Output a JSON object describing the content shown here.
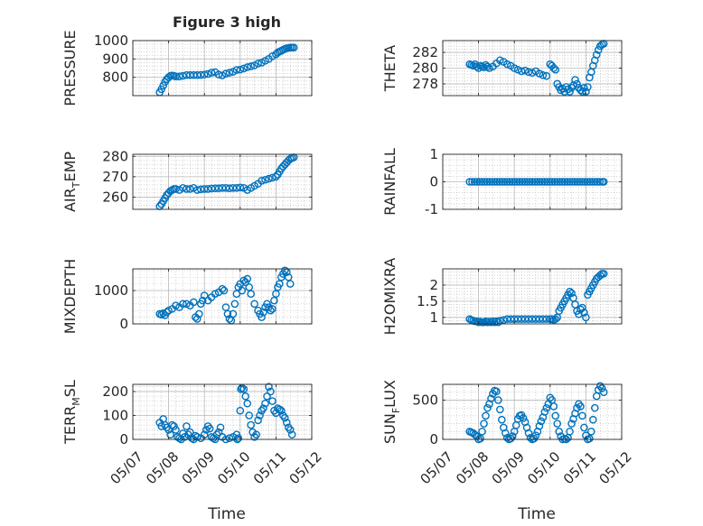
{
  "figure": {
    "title": "Figure 3 high",
    "xlabel": "Time"
  },
  "colors": {
    "marker": "#0072BD",
    "axis": "#262626",
    "grid": "#b8b8b8",
    "background": "#ffffff"
  },
  "chart_data": [
    {
      "type": "scatter",
      "title": "Figure 3 high",
      "ylabel": "PRESSURE",
      "ylabel_sub": "",
      "ylabel_tail": "",
      "xlim": [
        "05/07",
        "05/12"
      ],
      "ylim": [
        700,
        1000
      ],
      "yticks": [
        800,
        900,
        1000
      ],
      "xticklabels": [],
      "grid": true,
      "x_days": [
        0.75,
        0.8,
        0.85,
        0.9,
        0.95,
        1.0,
        1.05,
        1.1,
        1.15,
        1.2,
        1.3,
        1.4,
        1.5,
        1.6,
        1.7,
        1.8,
        1.9,
        2.0,
        2.1,
        2.2,
        2.3,
        2.4,
        2.5,
        2.6,
        2.7,
        2.8,
        2.9,
        3.0,
        3.1,
        3.2,
        3.3,
        3.4,
        3.5,
        3.6,
        3.7,
        3.8,
        3.9,
        4.0,
        4.05,
        4.1,
        4.15,
        4.2,
        4.25,
        4.3,
        4.35,
        4.4,
        4.45,
        4.5
      ],
      "y": [
        718,
        735,
        755,
        775,
        790,
        800,
        808,
        810,
        808,
        805,
        805,
        808,
        812,
        812,
        812,
        812,
        813,
        815,
        818,
        825,
        828,
        815,
        810,
        820,
        825,
        830,
        840,
        842,
        848,
        855,
        860,
        865,
        875,
        880,
        890,
        900,
        915,
        925,
        935,
        940,
        945,
        950,
        955,
        958,
        960,
        962,
        962,
        962
      ]
    },
    {
      "type": "scatter",
      "title": "",
      "ylabel": "THETA",
      "ylabel_sub": "",
      "ylabel_tail": "",
      "xlim": [
        "05/07",
        "05/12"
      ],
      "ylim": [
        276.5,
        283.5
      ],
      "yticks": [
        278,
        280,
        282
      ],
      "xticklabels": [],
      "grid": true,
      "x_days": [
        0.75,
        0.8,
        0.85,
        0.9,
        0.95,
        1.0,
        1.05,
        1.1,
        1.15,
        1.2,
        1.25,
        1.3,
        1.4,
        1.5,
        1.6,
        1.7,
        1.8,
        1.9,
        2.0,
        2.1,
        2.2,
        2.3,
        2.4,
        2.5,
        2.6,
        2.7,
        2.8,
        2.9,
        3.0,
        3.05,
        3.1,
        3.15,
        3.2,
        3.25,
        3.3,
        3.35,
        3.4,
        3.45,
        3.5,
        3.55,
        3.6,
        3.65,
        3.7,
        3.75,
        3.8,
        3.85,
        3.9,
        3.95,
        4.0,
        4.05,
        4.1,
        4.15,
        4.2,
        4.25,
        4.3,
        4.35,
        4.4,
        4.45,
        4.5
      ],
      "y": [
        280.5,
        280.4,
        280.3,
        280.5,
        280.2,
        280.0,
        280.3,
        280.2,
        280.1,
        280.4,
        280.2,
        280.0,
        280.2,
        280.6,
        281.0,
        280.8,
        280.5,
        280.3,
        280.0,
        279.8,
        279.6,
        279.7,
        279.5,
        279.4,
        279.6,
        279.3,
        279.1,
        279.0,
        280.5,
        280.3,
        280.0,
        279.8,
        278.0,
        277.6,
        277.2,
        277.4,
        277.0,
        277.6,
        277.3,
        277.0,
        277.5,
        277.8,
        278.5,
        278.0,
        277.5,
        277.2,
        277.0,
        277.5,
        277.0,
        277.6,
        278.8,
        279.5,
        280.3,
        281.0,
        281.7,
        282.3,
        282.8,
        283.0,
        283.1
      ]
    },
    {
      "type": "scatter",
      "title": "",
      "ylabel": "AIR",
      "ylabel_sub": "T",
      "ylabel_tail": "EMP",
      "xlim": [
        "05/07",
        "05/12"
      ],
      "ylim": [
        254,
        281
      ],
      "yticks": [
        260,
        270,
        280
      ],
      "xticklabels": [],
      "grid": true,
      "x_days": [
        0.75,
        0.8,
        0.85,
        0.9,
        0.95,
        1.0,
        1.05,
        1.1,
        1.15,
        1.2,
        1.3,
        1.4,
        1.5,
        1.6,
        1.7,
        1.8,
        1.9,
        2.0,
        2.1,
        2.2,
        2.3,
        2.4,
        2.5,
        2.6,
        2.7,
        2.8,
        2.9,
        3.0,
        3.1,
        3.2,
        3.3,
        3.4,
        3.5,
        3.6,
        3.7,
        3.8,
        3.9,
        4.0,
        4.05,
        4.1,
        4.15,
        4.2,
        4.25,
        4.3,
        4.35,
        4.4,
        4.45,
        4.5
      ],
      "y": [
        255.5,
        256.5,
        258,
        259.5,
        261,
        262,
        263,
        263.5,
        264,
        264,
        263.5,
        264.5,
        264,
        264,
        264.5,
        263.5,
        263.8,
        264,
        264,
        264.2,
        264.3,
        264.3,
        264.5,
        264.5,
        264.3,
        264.5,
        264.5,
        264.7,
        264.5,
        263.5,
        264.5,
        265.5,
        266.5,
        268.0,
        268.5,
        269,
        269.5,
        270,
        271,
        272.5,
        274,
        275,
        276,
        277,
        278,
        278.8,
        279.2,
        279.5
      ]
    },
    {
      "type": "scatter",
      "title": "",
      "ylabel": "RAINFALL",
      "ylabel_sub": "",
      "ylabel_tail": "",
      "xlim": [
        "05/07",
        "05/12"
      ],
      "ylim": [
        -1,
        1
      ],
      "yticks": [
        -1,
        0,
        1
      ],
      "xticklabels": [],
      "grid": true,
      "x_days": [
        0.75,
        0.82,
        0.89,
        0.96,
        1.03,
        1.1,
        1.17,
        1.24,
        1.31,
        1.38,
        1.45,
        1.52,
        1.59,
        1.66,
        1.73,
        1.8,
        1.87,
        1.94,
        2.01,
        2.08,
        2.15,
        2.22,
        2.29,
        2.36,
        2.43,
        2.5,
        2.57,
        2.64,
        2.71,
        2.78,
        2.85,
        2.92,
        2.99,
        3.06,
        3.13,
        3.2,
        3.27,
        3.34,
        3.41,
        3.48,
        3.55,
        3.62,
        3.69,
        3.76,
        3.83,
        3.9,
        3.97,
        4.04,
        4.11,
        4.18,
        4.25,
        4.32,
        4.39,
        4.46,
        4.5
      ],
      "y": [
        0,
        0,
        0,
        0,
        0,
        0,
        0,
        0,
        0,
        0,
        0,
        0,
        0,
        0,
        0,
        0,
        0,
        0,
        0,
        0,
        0,
        0,
        0,
        0,
        0,
        0,
        0,
        0,
        0,
        0,
        0,
        0,
        0,
        0,
        0,
        0,
        0,
        0,
        0,
        0,
        0,
        0,
        0,
        0,
        0,
        0,
        0,
        0,
        0,
        0,
        0,
        0,
        0,
        0,
        0
      ]
    },
    {
      "type": "scatter",
      "title": "",
      "ylabel": "MIXDEPTH",
      "ylabel_sub": "",
      "ylabel_tail": "",
      "xlim": [
        "05/07",
        "05/12"
      ],
      "ylim": [
        0,
        1650
      ],
      "yticks": [
        0,
        1000
      ],
      "xticklabels": [],
      "grid": true,
      "x_days": [
        0.75,
        0.8,
        0.85,
        0.9,
        0.95,
        1.0,
        1.1,
        1.2,
        1.3,
        1.4,
        1.5,
        1.6,
        1.7,
        1.75,
        1.8,
        1.85,
        1.9,
        1.95,
        2.0,
        2.1,
        2.2,
        2.3,
        2.4,
        2.5,
        2.55,
        2.6,
        2.65,
        2.7,
        2.75,
        2.8,
        2.85,
        2.9,
        2.95,
        3.0,
        3.05,
        3.1,
        3.15,
        3.2,
        3.25,
        3.3,
        3.4,
        3.5,
        3.55,
        3.6,
        3.65,
        3.7,
        3.75,
        3.8,
        3.85,
        3.9,
        3.95,
        4.0,
        4.05,
        4.1,
        4.15,
        4.2,
        4.25,
        4.3,
        4.35,
        4.4
      ],
      "y": [
        300,
        280,
        320,
        260,
        350,
        400,
        450,
        550,
        500,
        600,
        600,
        550,
        650,
        200,
        150,
        300,
        600,
        700,
        850,
        700,
        800,
        900,
        950,
        1050,
        1000,
        500,
        300,
        150,
        100,
        300,
        600,
        900,
        1100,
        1200,
        1000,
        1300,
        1250,
        1350,
        1100,
        900,
        600,
        400,
        300,
        200,
        350,
        500,
        600,
        500,
        400,
        450,
        700,
        900,
        1100,
        1200,
        1400,
        1500,
        1600,
        1550,
        1400,
        1200
      ]
    },
    {
      "type": "scatter",
      "title": "",
      "ylabel": "H2OMIXRA",
      "ylabel_sub": "",
      "ylabel_tail": "",
      "xlim": [
        "05/07",
        "05/12"
      ],
      "ylim": [
        0.8,
        2.5
      ],
      "yticks": [
        1,
        1.5,
        2
      ],
      "xticklabels": [],
      "grid": true,
      "x_days": [
        0.75,
        0.8,
        0.85,
        0.9,
        0.95,
        1.0,
        1.05,
        1.1,
        1.15,
        1.2,
        1.25,
        1.3,
        1.35,
        1.4,
        1.45,
        1.5,
        1.55,
        1.6,
        1.7,
        1.8,
        1.9,
        2.0,
        2.1,
        2.2,
        2.3,
        2.4,
        2.5,
        2.6,
        2.7,
        2.8,
        2.9,
        3.0,
        3.05,
        3.1,
        3.15,
        3.2,
        3.25,
        3.3,
        3.35,
        3.4,
        3.45,
        3.5,
        3.55,
        3.6,
        3.65,
        3.7,
        3.75,
        3.8,
        3.85,
        3.9,
        3.95,
        4.0,
        4.05,
        4.1,
        4.15,
        4.2,
        4.25,
        4.3,
        4.35,
        4.4,
        4.45,
        4.5
      ],
      "y": [
        0.95,
        0.92,
        0.9,
        0.88,
        0.88,
        0.85,
        0.87,
        0.85,
        0.85,
        0.88,
        0.85,
        0.87,
        0.85,
        0.88,
        0.85,
        0.88,
        0.85,
        0.9,
        0.92,
        0.95,
        0.95,
        0.95,
        0.95,
        0.95,
        0.95,
        0.95,
        0.95,
        0.95,
        0.95,
        0.95,
        0.95,
        0.95,
        0.95,
        0.92,
        0.95,
        1.0,
        1.2,
        1.3,
        1.4,
        1.5,
        1.6,
        1.7,
        1.8,
        1.75,
        1.6,
        1.4,
        1.2,
        1.1,
        1.25,
        1.3,
        1.15,
        1.0,
        1.7,
        1.8,
        1.9,
        2.0,
        2.1,
        2.2,
        2.25,
        2.3,
        2.35,
        2.35
      ]
    },
    {
      "type": "scatter",
      "title": "",
      "ylabel": "TERR",
      "ylabel_sub": "M",
      "ylabel_tail": "SL",
      "xlim": [
        "05/07",
        "05/12"
      ],
      "ylim": [
        0,
        230
      ],
      "yticks": [
        0,
        100,
        200
      ],
      "xticklabels": [
        "05/07",
        "05/08",
        "05/09",
        "05/10",
        "05/11",
        "05/12"
      ],
      "grid": true,
      "x_days": [
        0.75,
        0.8,
        0.85,
        0.9,
        0.95,
        1.0,
        1.05,
        1.1,
        1.15,
        1.2,
        1.25,
        1.3,
        1.35,
        1.4,
        1.45,
        1.5,
        1.55,
        1.6,
        1.65,
        1.7,
        1.75,
        1.8,
        1.9,
        2.0,
        2.05,
        2.1,
        2.15,
        2.2,
        2.25,
        2.3,
        2.35,
        2.4,
        2.45,
        2.5,
        2.6,
        2.7,
        2.8,
        2.9,
        2.92,
        2.95,
        3.0,
        3.02,
        3.05,
        3.1,
        3.15,
        3.2,
        3.25,
        3.3,
        3.35,
        3.4,
        3.45,
        3.5,
        3.55,
        3.6,
        3.65,
        3.7,
        3.75,
        3.8,
        3.85,
        3.9,
        3.95,
        4.0,
        4.05,
        4.1,
        4.15,
        4.2,
        4.25,
        4.3,
        4.35,
        4.4,
        4.45
      ],
      "y": [
        70,
        55,
        85,
        60,
        50,
        40,
        20,
        60,
        55,
        40,
        10,
        5,
        0,
        25,
        10,
        55,
        20,
        30,
        5,
        0,
        15,
        10,
        5,
        20,
        40,
        55,
        45,
        10,
        5,
        0,
        20,
        30,
        50,
        10,
        0,
        5,
        10,
        20,
        0,
        5,
        120,
        210,
        215,
        210,
        180,
        150,
        100,
        60,
        30,
        10,
        20,
        80,
        100,
        120,
        130,
        150,
        180,
        220,
        200,
        160,
        120,
        110,
        130,
        125,
        120,
        100,
        90,
        70,
        50,
        40,
        20
      ]
    },
    {
      "type": "scatter",
      "title": "",
      "ylabel": "SUN",
      "ylabel_sub": "F",
      "ylabel_tail": "LUX",
      "xlim": [
        "05/07",
        "05/12"
      ],
      "ylim": [
        0,
        700
      ],
      "yticks": [
        0,
        500
      ],
      "xticklabels": [
        "05/07",
        "05/08",
        "05/09",
        "05/10",
        "05/11",
        "05/12"
      ],
      "grid": true,
      "x_days": [
        0.75,
        0.8,
        0.85,
        0.9,
        0.95,
        1.0,
        1.05,
        1.1,
        1.15,
        1.2,
        1.25,
        1.3,
        1.35,
        1.4,
        1.45,
        1.5,
        1.55,
        1.6,
        1.65,
        1.7,
        1.75,
        1.8,
        1.85,
        1.9,
        1.95,
        2.0,
        2.05,
        2.1,
        2.15,
        2.2,
        2.25,
        2.3,
        2.35,
        2.4,
        2.45,
        2.5,
        2.55,
        2.6,
        2.65,
        2.7,
        2.75,
        2.8,
        2.85,
        2.9,
        2.95,
        3.0,
        3.05,
        3.1,
        3.15,
        3.2,
        3.25,
        3.3,
        3.35,
        3.4,
        3.45,
        3.5,
        3.55,
        3.6,
        3.65,
        3.7,
        3.75,
        3.8,
        3.85,
        3.9,
        3.95,
        4.0,
        4.05,
        4.1,
        4.15,
        4.2,
        4.25,
        4.3,
        4.35,
        4.4,
        4.45,
        4.5
      ],
      "y": [
        100,
        90,
        80,
        60,
        40,
        0,
        10,
        100,
        200,
        300,
        400,
        450,
        520,
        580,
        620,
        610,
        500,
        380,
        250,
        150,
        80,
        20,
        0,
        10,
        40,
        100,
        180,
        260,
        300,
        310,
        270,
        220,
        150,
        80,
        20,
        0,
        10,
        50,
        100,
        170,
        230,
        280,
        350,
        400,
        450,
        530,
        500,
        420,
        300,
        200,
        100,
        40,
        0,
        10,
        0,
        20,
        100,
        200,
        260,
        330,
        400,
        450,
        420,
        300,
        150,
        50,
        0,
        10,
        100,
        250,
        400,
        550,
        630,
        680,
        650,
        600
      ]
    }
  ]
}
